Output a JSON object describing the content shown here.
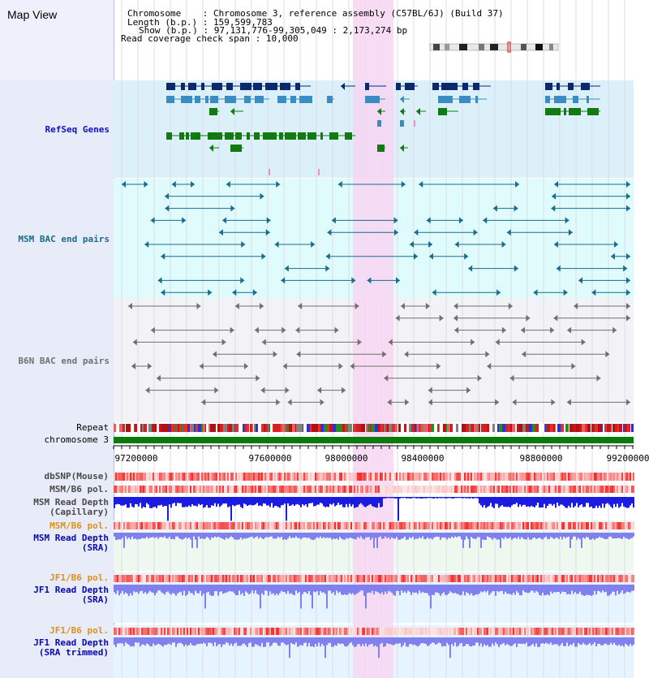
{
  "page_title": "Map View",
  "meta": {
    "chromosome_label": "Chromosome",
    "chromosome_value": "Chromosome 3, reference assembly (C57BL/6J) (Build 37)",
    "length_label": "Length (b.p.)",
    "length_value": "159,599,783",
    "show_label": "Show (b.p.)",
    "show_value": "97,131,776-99,305,049 : 2,173,274 bp",
    "coverage_label": "Read coverage check span",
    "coverage_value": "10,000"
  },
  "tracks": {
    "refseq": "RefSeq Genes",
    "msm_bac": "MSM BAC end pairs",
    "b6n_bac": "B6N BAC end pairs",
    "repeat": "Repeat",
    "chromosome": "chromosome 3",
    "dbsnp": "dbSNP(Mouse)",
    "msm_b6_pol_1": "MSM/B6 pol.",
    "msm_depth_cap_1": "MSM Read Depth",
    "msm_depth_cap_2": "(Capillary)",
    "msm_b6_pol_2": "MSM/B6 pol.",
    "msm_depth_sra_1": "MSM Read Depth",
    "msm_depth_sra_2": "(SRA)",
    "jf1_b6_pol_1": "JF1/B6 pol.",
    "jf1_depth_sra_1": "JF1 Read Depth",
    "jf1_depth_sra_2": "(SRA)",
    "jf1_b6_pol_2": "JF1/B6 pol.",
    "jf1_depth_trim_1": "JF1 Read Depth",
    "jf1_depth_trim_2": "(SRA trimmed)"
  },
  "axis_ticks": [
    "97200000",
    "97600000",
    "98000000",
    "98400000",
    "98800000",
    "99200000"
  ],
  "colors": {
    "refseq_label": "#1010c8",
    "msm_bac_label": "#186c8c",
    "b6n_bac_label": "#707070",
    "orange_label": "#e09018",
    "blue_label": "#0808b0",
    "highlight": "#f7d6f2",
    "chromosome_bar": "#0a7a0a",
    "gene_navy": "#0b2a6e",
    "gene_blue": "#3c8cc4",
    "gene_green": "#117a11",
    "depth_capillary": "#1c1ce0",
    "depth_sra": "#8080ee"
  }
}
